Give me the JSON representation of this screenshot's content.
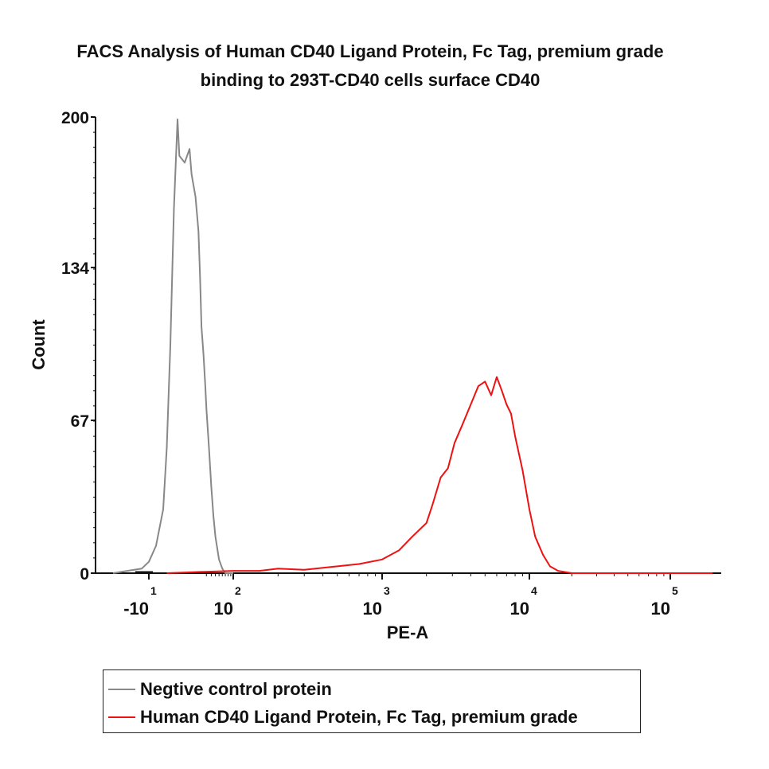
{
  "chart_data": {
    "type": "line",
    "title_line1": "FACS Analysis of Human CD40 Ligand Protein, Fc Tag, premium grade",
    "title_line2": "binding to 293T-CD40 cells surface CD40",
    "xlabel": "PE-A",
    "ylabel": "Count",
    "ylim": [
      0,
      200
    ],
    "yticks": [
      0,
      67,
      134,
      200
    ],
    "xticks": [
      {
        "base": "-10",
        "exp": "1"
      },
      {
        "base": "10",
        "exp": "2"
      },
      {
        "base": "10",
        "exp": "3"
      },
      {
        "base": "10",
        "exp": "4"
      },
      {
        "base": "10",
        "exp": "5"
      }
    ],
    "series": [
      {
        "name": "Negtive control protein",
        "color": "#888888",
        "points": [
          [
            -20,
            0
          ],
          [
            -12,
            2
          ],
          [
            -10,
            5
          ],
          [
            -8,
            12
          ],
          [
            -6,
            28
          ],
          [
            -5,
            55
          ],
          [
            -4,
            100
          ],
          [
            -3,
            160
          ],
          [
            -2,
            199
          ],
          [
            -1.5,
            183
          ],
          [
            0,
            180
          ],
          [
            1,
            186
          ],
          [
            2,
            175
          ],
          [
            5,
            165
          ],
          [
            8,
            150
          ],
          [
            10,
            130
          ],
          [
            12,
            108
          ],
          [
            15,
            96
          ],
          [
            18,
            82
          ],
          [
            20,
            72
          ],
          [
            25,
            55
          ],
          [
            30,
            38
          ],
          [
            35,
            25
          ],
          [
            40,
            16
          ],
          [
            50,
            6
          ],
          [
            60,
            2
          ],
          [
            70,
            0
          ],
          [
            100,
            0
          ]
        ]
      },
      {
        "name": "Human CD40 Ligand Protein, Fc Tag, premium grade",
        "color": "#ee1111",
        "points": [
          [
            -5,
            0
          ],
          [
            5,
            0.5
          ],
          [
            100,
            1
          ],
          [
            150,
            1
          ],
          [
            200,
            2
          ],
          [
            300,
            1.5
          ],
          [
            500,
            3
          ],
          [
            700,
            4
          ],
          [
            1000,
            6
          ],
          [
            1300,
            10
          ],
          [
            1600,
            16
          ],
          [
            2000,
            22
          ],
          [
            2200,
            30
          ],
          [
            2500,
            42
          ],
          [
            2800,
            46
          ],
          [
            3100,
            57
          ],
          [
            3500,
            65
          ],
          [
            4000,
            74
          ],
          [
            4500,
            82
          ],
          [
            5000,
            84
          ],
          [
            5500,
            78
          ],
          [
            6000,
            86
          ],
          [
            6500,
            80
          ],
          [
            7000,
            74
          ],
          [
            7500,
            70
          ],
          [
            8000,
            60
          ],
          [
            9000,
            45
          ],
          [
            10000,
            28
          ],
          [
            11000,
            16
          ],
          [
            12500,
            8
          ],
          [
            14000,
            3
          ],
          [
            16000,
            1
          ],
          [
            20000,
            0
          ],
          [
            200000,
            0
          ]
        ]
      }
    ]
  }
}
